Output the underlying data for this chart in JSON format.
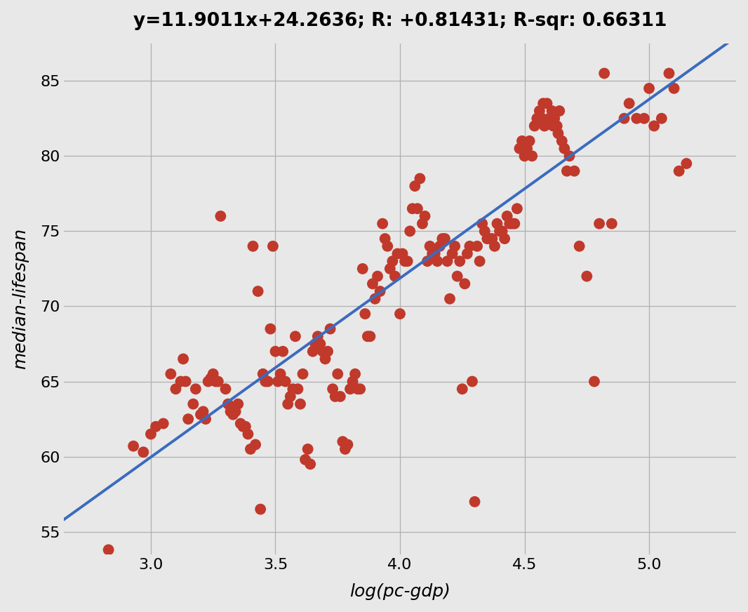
{
  "title": "y=11.9011x+24.2636; R: +0.81431; R-sqr: 0.66311",
  "xlabel": "log(pc-gdp)",
  "ylabel": "median-lifespan",
  "slope": 11.9011,
  "intercept": 24.2636,
  "xlim": [
    2.65,
    5.35
  ],
  "ylim": [
    53.5,
    87.5
  ],
  "xticks": [
    3.0,
    3.5,
    4.0,
    4.5,
    5.0
  ],
  "yticks": [
    55,
    60,
    65,
    70,
    75,
    80,
    85
  ],
  "background_color": "#e8e8e8",
  "dot_color": "#c0392b",
  "line_color": "#3a6bbf",
  "title_fontsize": 19,
  "label_fontsize": 18,
  "tick_fontsize": 16,
  "dot_size": 130,
  "points": [
    [
      2.83,
      53.8
    ],
    [
      2.93,
      60.7
    ],
    [
      2.97,
      60.3
    ],
    [
      3.0,
      61.5
    ],
    [
      3.02,
      62.0
    ],
    [
      3.05,
      62.2
    ],
    [
      3.08,
      65.5
    ],
    [
      3.1,
      64.5
    ],
    [
      3.12,
      65.0
    ],
    [
      3.13,
      66.5
    ],
    [
      3.14,
      65.0
    ],
    [
      3.15,
      62.5
    ],
    [
      3.17,
      63.5
    ],
    [
      3.18,
      64.5
    ],
    [
      3.2,
      62.8
    ],
    [
      3.21,
      63.0
    ],
    [
      3.22,
      62.5
    ],
    [
      3.23,
      65.0
    ],
    [
      3.24,
      65.2
    ],
    [
      3.25,
      65.5
    ],
    [
      3.26,
      65.0
    ],
    [
      3.27,
      65.0
    ],
    [
      3.28,
      76.0
    ],
    [
      3.3,
      64.5
    ],
    [
      3.31,
      63.5
    ],
    [
      3.32,
      63.0
    ],
    [
      3.33,
      62.8
    ],
    [
      3.34,
      63.0
    ],
    [
      3.35,
      63.5
    ],
    [
      3.36,
      62.2
    ],
    [
      3.37,
      62.0
    ],
    [
      3.38,
      62.0
    ],
    [
      3.39,
      61.5
    ],
    [
      3.4,
      60.5
    ],
    [
      3.41,
      74.0
    ],
    [
      3.42,
      60.8
    ],
    [
      3.43,
      71.0
    ],
    [
      3.44,
      56.5
    ],
    [
      3.45,
      65.5
    ],
    [
      3.46,
      65.0
    ],
    [
      3.47,
      65.0
    ],
    [
      3.48,
      68.5
    ],
    [
      3.49,
      74.0
    ],
    [
      3.5,
      67.0
    ],
    [
      3.51,
      65.0
    ],
    [
      3.52,
      65.5
    ],
    [
      3.53,
      67.0
    ],
    [
      3.54,
      65.0
    ],
    [
      3.55,
      63.5
    ],
    [
      3.56,
      64.0
    ],
    [
      3.57,
      64.5
    ],
    [
      3.58,
      68.0
    ],
    [
      3.59,
      64.5
    ],
    [
      3.6,
      63.5
    ],
    [
      3.61,
      65.5
    ],
    [
      3.62,
      59.8
    ],
    [
      3.63,
      60.5
    ],
    [
      3.64,
      59.5
    ],
    [
      3.65,
      67.0
    ],
    [
      3.66,
      67.5
    ],
    [
      3.67,
      68.0
    ],
    [
      3.68,
      67.5
    ],
    [
      3.69,
      67.0
    ],
    [
      3.7,
      66.5
    ],
    [
      3.71,
      67.0
    ],
    [
      3.72,
      68.5
    ],
    [
      3.73,
      64.5
    ],
    [
      3.74,
      64.0
    ],
    [
      3.75,
      65.5
    ],
    [
      3.76,
      64.0
    ],
    [
      3.77,
      61.0
    ],
    [
      3.78,
      60.5
    ],
    [
      3.79,
      60.8
    ],
    [
      3.8,
      64.5
    ],
    [
      3.81,
      65.0
    ],
    [
      3.82,
      65.5
    ],
    [
      3.83,
      64.5
    ],
    [
      3.84,
      64.5
    ],
    [
      3.85,
      72.5
    ],
    [
      3.86,
      69.5
    ],
    [
      3.87,
      68.0
    ],
    [
      3.88,
      68.0
    ],
    [
      3.89,
      71.5
    ],
    [
      3.9,
      70.5
    ],
    [
      3.91,
      72.0
    ],
    [
      3.92,
      71.0
    ],
    [
      3.93,
      75.5
    ],
    [
      3.94,
      74.5
    ],
    [
      3.95,
      74.0
    ],
    [
      3.96,
      72.5
    ],
    [
      3.97,
      73.0
    ],
    [
      3.98,
      72.0
    ],
    [
      3.99,
      73.5
    ],
    [
      4.0,
      69.5
    ],
    [
      4.01,
      73.5
    ],
    [
      4.02,
      73.0
    ],
    [
      4.03,
      73.0
    ],
    [
      4.04,
      75.0
    ],
    [
      4.05,
      76.5
    ],
    [
      4.06,
      78.0
    ],
    [
      4.07,
      76.5
    ],
    [
      4.08,
      78.5
    ],
    [
      4.09,
      75.5
    ],
    [
      4.1,
      76.0
    ],
    [
      4.11,
      73.0
    ],
    [
      4.12,
      74.0
    ],
    [
      4.13,
      73.5
    ],
    [
      4.14,
      73.5
    ],
    [
      4.15,
      73.0
    ],
    [
      4.16,
      74.0
    ],
    [
      4.17,
      74.5
    ],
    [
      4.18,
      74.5
    ],
    [
      4.19,
      73.0
    ],
    [
      4.2,
      70.5
    ],
    [
      4.21,
      73.5
    ],
    [
      4.22,
      74.0
    ],
    [
      4.23,
      72.0
    ],
    [
      4.24,
      73.0
    ],
    [
      4.25,
      64.5
    ],
    [
      4.26,
      71.5
    ],
    [
      4.27,
      73.5
    ],
    [
      4.28,
      74.0
    ],
    [
      4.29,
      65.0
    ],
    [
      4.3,
      57.0
    ],
    [
      4.31,
      74.0
    ],
    [
      4.32,
      73.0
    ],
    [
      4.33,
      75.5
    ],
    [
      4.34,
      75.0
    ],
    [
      4.35,
      74.5
    ],
    [
      4.36,
      74.5
    ],
    [
      4.37,
      74.5
    ],
    [
      4.38,
      74.0
    ],
    [
      4.39,
      75.5
    ],
    [
      4.4,
      75.0
    ],
    [
      4.41,
      75.0
    ],
    [
      4.42,
      74.5
    ],
    [
      4.43,
      76.0
    ],
    [
      4.44,
      75.5
    ],
    [
      4.45,
      75.5
    ],
    [
      4.46,
      75.5
    ],
    [
      4.47,
      76.5
    ],
    [
      4.48,
      80.5
    ],
    [
      4.49,
      81.0
    ],
    [
      4.5,
      80.0
    ],
    [
      4.51,
      80.5
    ],
    [
      4.52,
      81.0
    ],
    [
      4.53,
      80.0
    ],
    [
      4.54,
      82.0
    ],
    [
      4.55,
      82.5
    ],
    [
      4.56,
      83.0
    ],
    [
      4.57,
      82.5
    ],
    [
      4.575,
      83.5
    ],
    [
      4.58,
      82.0
    ],
    [
      4.59,
      83.5
    ],
    [
      4.6,
      82.5
    ],
    [
      4.61,
      83.0
    ],
    [
      4.615,
      82.0
    ],
    [
      4.62,
      82.5
    ],
    [
      4.63,
      82.0
    ],
    [
      4.635,
      81.5
    ],
    [
      4.64,
      83.0
    ],
    [
      4.65,
      81.0
    ],
    [
      4.66,
      80.5
    ],
    [
      4.67,
      79.0
    ],
    [
      4.68,
      80.0
    ],
    [
      4.7,
      79.0
    ],
    [
      4.72,
      74.0
    ],
    [
      4.75,
      72.0
    ],
    [
      4.78,
      65.0
    ],
    [
      4.8,
      75.5
    ],
    [
      4.82,
      85.5
    ],
    [
      4.85,
      75.5
    ],
    [
      4.9,
      82.5
    ],
    [
      4.92,
      83.5
    ],
    [
      4.95,
      82.5
    ],
    [
      4.98,
      82.5
    ],
    [
      5.0,
      84.5
    ],
    [
      5.02,
      82.0
    ],
    [
      5.05,
      82.5
    ],
    [
      5.08,
      85.5
    ],
    [
      5.1,
      84.5
    ],
    [
      5.12,
      79.0
    ],
    [
      5.15,
      79.5
    ]
  ]
}
